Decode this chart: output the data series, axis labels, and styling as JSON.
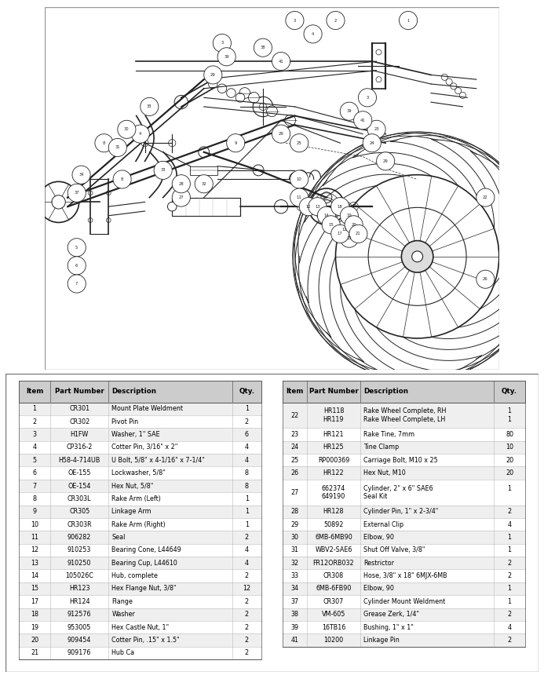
{
  "bg_color": "#ffffff",
  "diagram_bg": "#f5f5f5",
  "table_left": {
    "headers": [
      "Item",
      "Part Number",
      "Description",
      "Qty."
    ],
    "rows": [
      [
        "1",
        "CR301",
        "Mount Plate Weldment",
        "1"
      ],
      [
        "2",
        "CR302",
        "Pivot Pin",
        "2"
      ],
      [
        "3",
        "H1FW",
        "Washer, 1\" SAE",
        "6"
      ],
      [
        "4",
        "CP316-2",
        "Cotter Pin, 3/16\" x 2\"",
        "4"
      ],
      [
        "5",
        "H58-4-714UB",
        "U Bolt, 5/8\" x 4-1/16\" x 7-1/4\"",
        "4"
      ],
      [
        "6",
        "OE-155",
        "Lockwasher, 5/8\"",
        "8"
      ],
      [
        "7",
        "OE-154",
        "Hex Nut, 5/8\"",
        "8"
      ],
      [
        "8",
        "CR303L",
        "Rake Arm (Left)",
        "1"
      ],
      [
        "9",
        "CR305",
        "Linkage Arm",
        "1"
      ],
      [
        "10",
        "CR303R",
        "Rake Arm (Right)",
        "1"
      ],
      [
        "11",
        "906282",
        "Seal",
        "2"
      ],
      [
        "12",
        "910253",
        "Bearing Cone, L44649",
        "4"
      ],
      [
        "13",
        "910250",
        "Bearing Cup, L44610",
        "4"
      ],
      [
        "14",
        "105026C",
        "Hub, complete",
        "2"
      ],
      [
        "15",
        "HR123",
        "Hex Flange Nut, 3/8\"",
        "12"
      ],
      [
        "17",
        "HR124",
        "Flange",
        "2"
      ],
      [
        "18",
        "912576",
        "Washer",
        "2"
      ],
      [
        "19",
        "953005",
        "Hex Castle Nut, 1\"",
        "2"
      ],
      [
        "20",
        "909454",
        "Cotter Pin, .15\" x 1.5\"",
        "2"
      ],
      [
        "21",
        "909176",
        "Hub Ca",
        "2"
      ]
    ]
  },
  "table_right": {
    "headers": [
      "Item",
      "Part Number",
      "Description",
      "Qty."
    ],
    "rows": [
      [
        "22",
        "HR118\nHR119",
        "Rake Wheel Complete, RH\nRake Wheel Complete, LH",
        "1\n1"
      ],
      [
        "23",
        "HR121",
        "Rake Tine, 7mm",
        "80"
      ],
      [
        "24",
        "HR125",
        "Tine Clamp",
        "10"
      ],
      [
        "25",
        "RP000369",
        "Carriage Bolt, M10 x 25",
        "20"
      ],
      [
        "26",
        "HR122",
        "Hex Nut, M10",
        "20"
      ],
      [
        "27",
        "662374\n649190",
        "Cylinder, 2\" x 6\" SAE6\nSeal Kit",
        "1\n "
      ],
      [
        "28",
        "HR128",
        "Cylinder Pin, 1\" x 2-3/4\"",
        "2"
      ],
      [
        "29",
        "50892",
        "External Clip",
        "4"
      ],
      [
        "30",
        "6MB-6MB90",
        "Elbow, 90",
        "1"
      ],
      [
        "31",
        "WBV2-SAE6",
        "Shut Off Valve, 3/8\"",
        "1"
      ],
      [
        "32",
        "FR12ORB032",
        "Restrictor",
        "2"
      ],
      [
        "33",
        "CR308",
        "Hose, 3/8\" x 18\" 6MJX-6MB",
        "2"
      ],
      [
        "34",
        "6MB-6FB90",
        "Elbow, 90",
        "1"
      ],
      [
        "37",
        "CR307",
        "Cylinder Mount Weldment",
        "1"
      ],
      [
        "38",
        "VM-605",
        "Grease Zerk, 1/4\"",
        "2"
      ],
      [
        "39",
        "16TB16",
        "Bushing, 1\" x 1\"",
        "4"
      ],
      [
        "41",
        "10200",
        "Linkage Pin",
        "2"
      ]
    ]
  }
}
